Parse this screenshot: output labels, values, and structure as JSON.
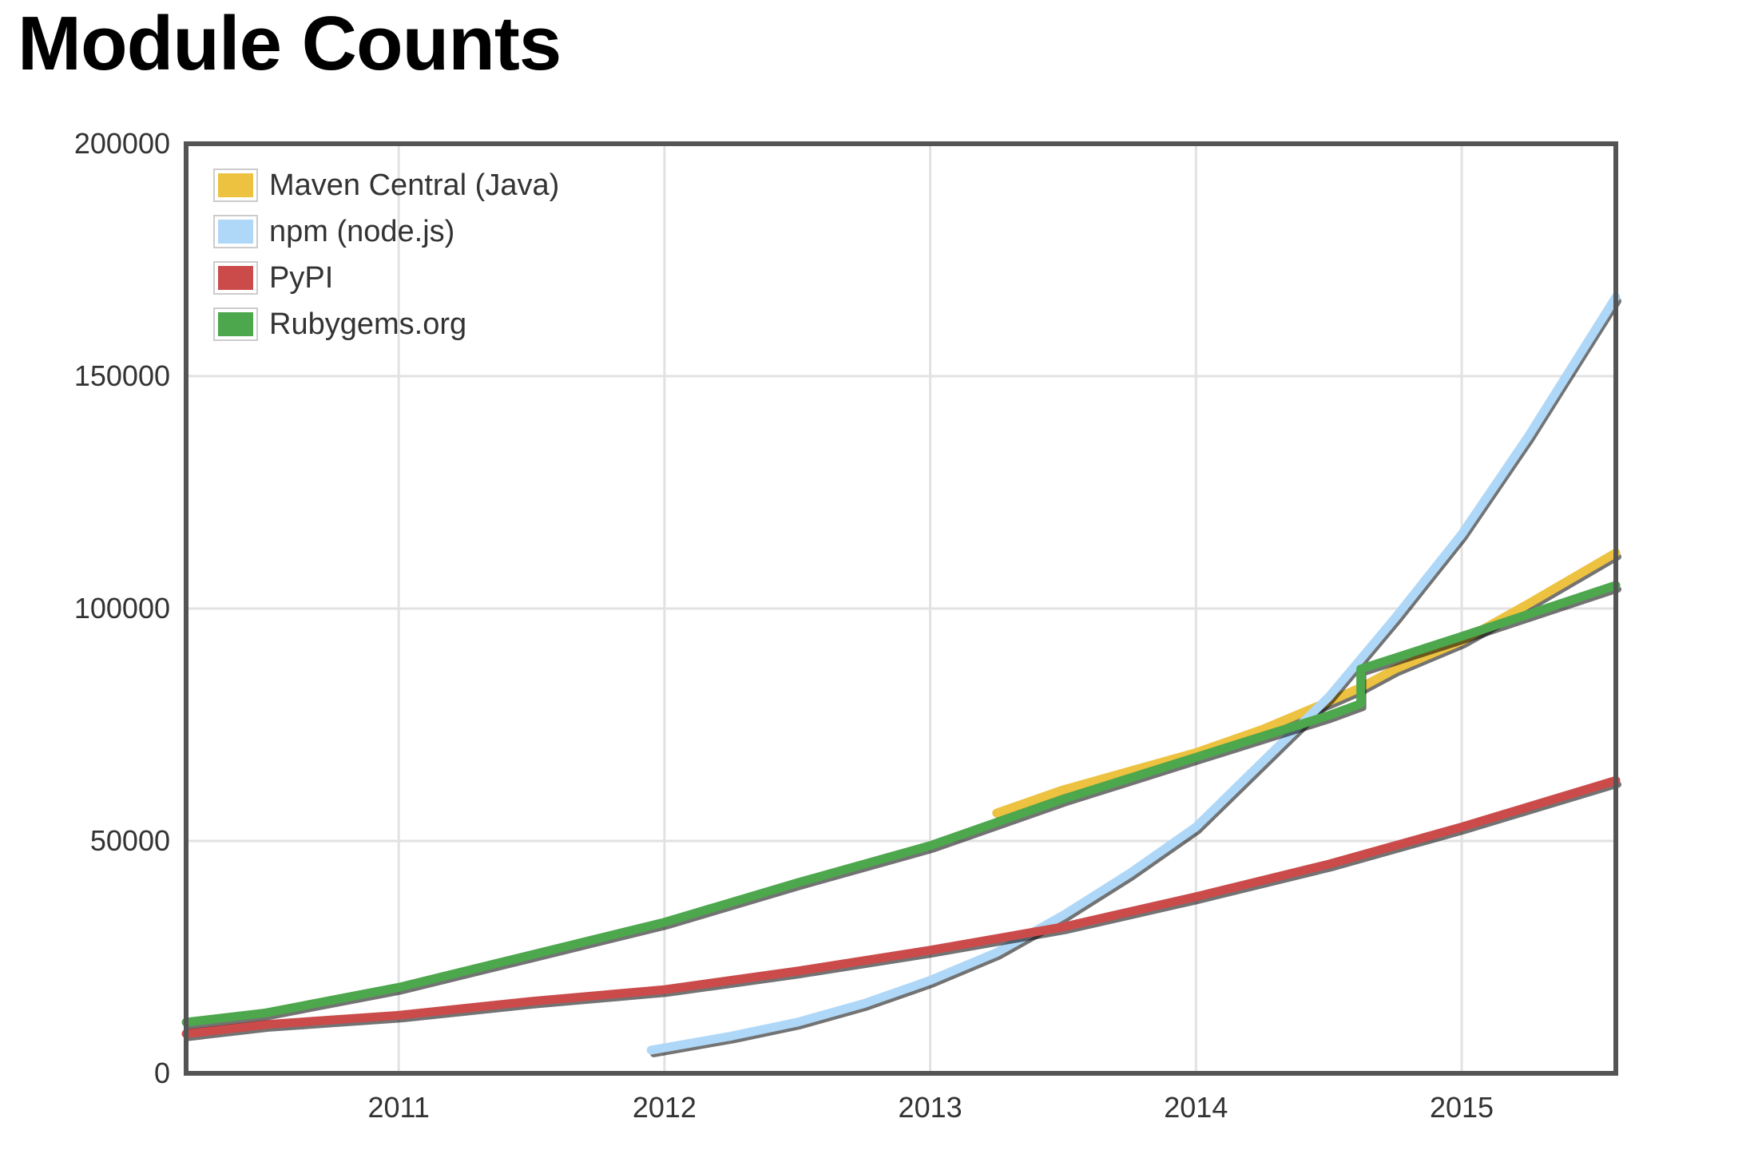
{
  "page": {
    "title": "Module Counts"
  },
  "chart_data": {
    "type": "line",
    "title": "Module Counts",
    "xlabel": "",
    "ylabel": "",
    "xlim": [
      2010.2,
      2015.58
    ],
    "ylim": [
      0,
      200000
    ],
    "x_ticks": [
      2011,
      2012,
      2013,
      2014,
      2015
    ],
    "y_ticks": [
      0,
      50000,
      100000,
      150000,
      200000
    ],
    "grid": true,
    "legend_position": "top-left",
    "series": [
      {
        "name": "Maven Central (Java)",
        "color": "#edc240",
        "x": [
          2013.25,
          2013.5,
          2013.75,
          2014.0,
          2014.25,
          2014.5,
          2014.62,
          2014.75,
          2015.0,
          2015.25,
          2015.58
        ],
        "y": [
          56000,
          61000,
          65000,
          69000,
          74000,
          80000,
          83000,
          87000,
          93000,
          101000,
          112000
        ]
      },
      {
        "name": "npm (node.js)",
        "color": "#afd8f8",
        "x": [
          2011.95,
          2012.25,
          2012.5,
          2012.75,
          2013.0,
          2013.25,
          2013.5,
          2013.75,
          2014.0,
          2014.25,
          2014.5,
          2014.75,
          2015.0,
          2015.25,
          2015.58
        ],
        "y": [
          5000,
          8000,
          11000,
          15000,
          20000,
          26000,
          34000,
          43000,
          53000,
          67000,
          81000,
          98000,
          116000,
          137000,
          167000
        ]
      },
      {
        "name": "PyPI",
        "color": "#cb4b4b",
        "x": [
          2010.2,
          2010.5,
          2011.0,
          2011.5,
          2012.0,
          2012.5,
          2013.0,
          2013.5,
          2014.0,
          2014.5,
          2015.0,
          2015.58
        ],
        "y": [
          8500,
          10500,
          12500,
          15500,
          18000,
          22000,
          26500,
          31500,
          38000,
          45000,
          53000,
          63000
        ]
      },
      {
        "name": "Rubygems.org",
        "color": "#4da74d",
        "x": [
          2010.2,
          2010.5,
          2011.0,
          2011.5,
          2012.0,
          2012.5,
          2013.0,
          2013.5,
          2014.0,
          2014.5,
          2014.62,
          2014.62,
          2015.0,
          2015.58
        ],
        "y": [
          11000,
          13000,
          18500,
          25500,
          32500,
          41000,
          49000,
          59000,
          68000,
          77000,
          79500,
          87000,
          94000,
          105000
        ]
      }
    ]
  }
}
